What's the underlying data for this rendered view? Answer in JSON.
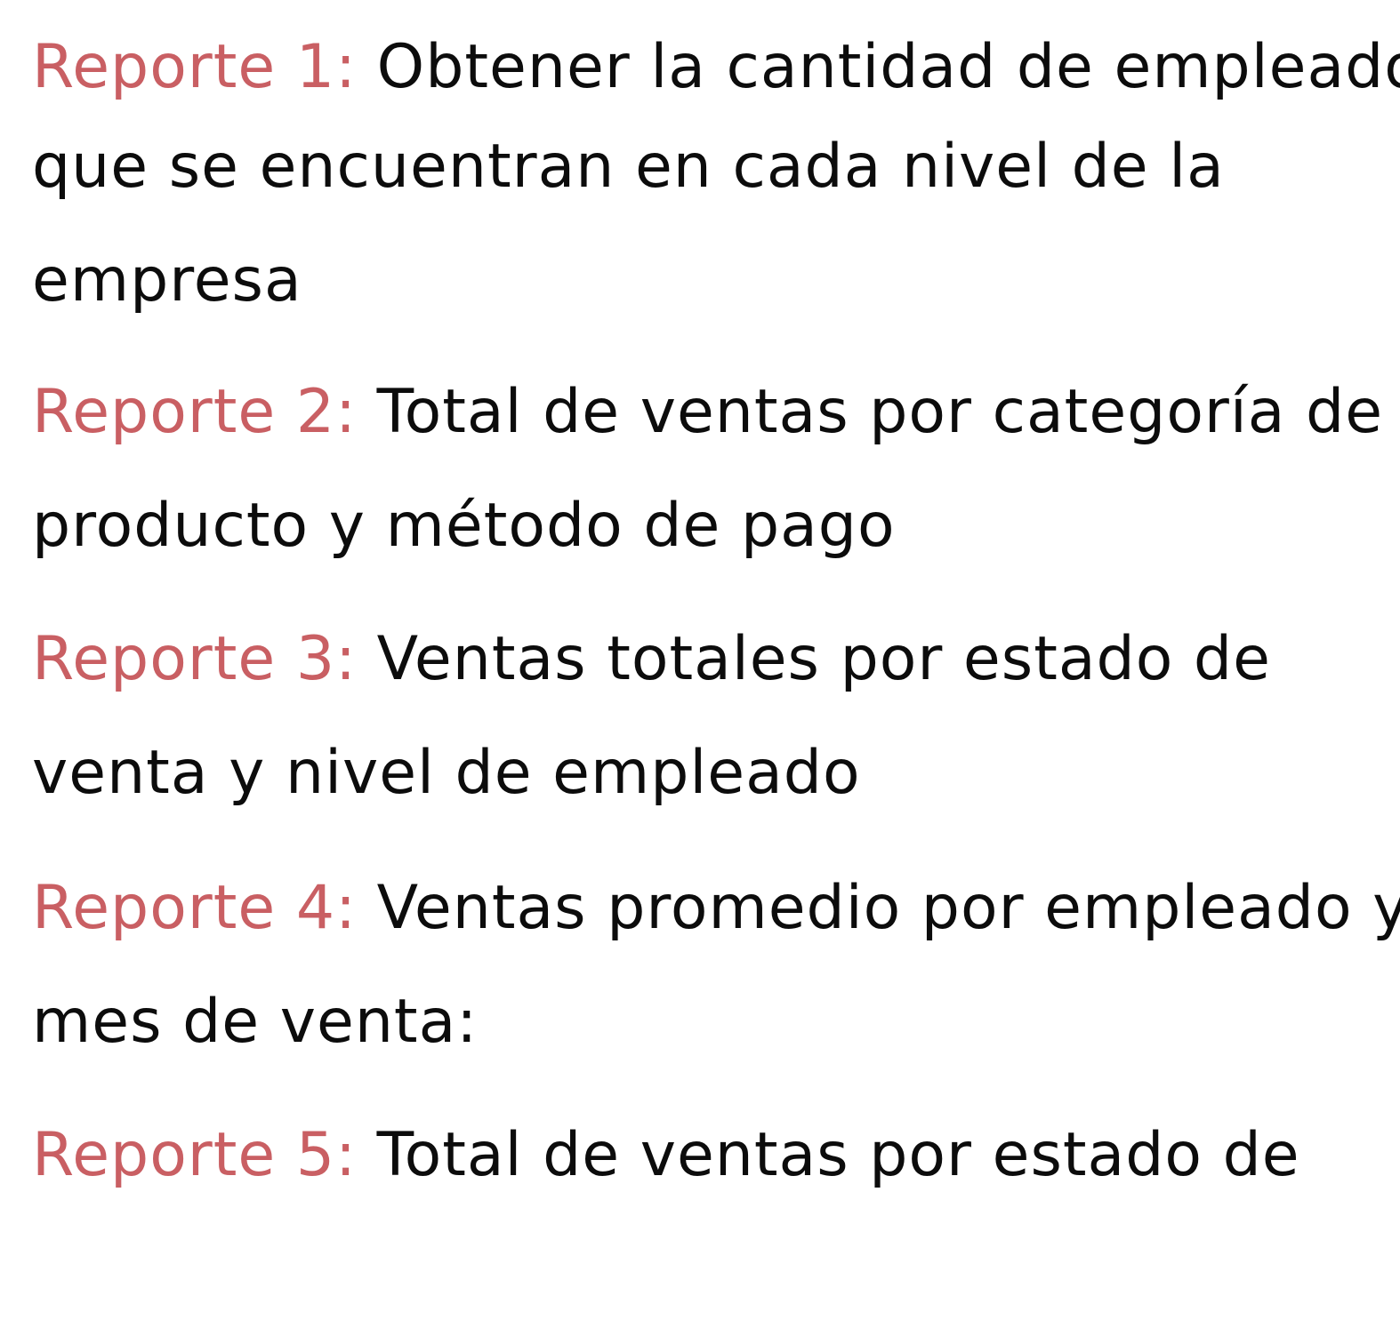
{
  "reports": [
    {
      "label": "Reporte 1:",
      "lines": [
        "Obtener la cantidad de empleados",
        "que se encuentran en cada nivel de la",
        "empresa"
      ]
    },
    {
      "label": "Reporte 2:",
      "lines": [
        "Total de ventas por categoría de",
        "producto y método de pago"
      ]
    },
    {
      "label": "Reporte 3:",
      "lines": [
        "Ventas totales por estado de",
        "venta y nivel de empleado"
      ]
    },
    {
      "label": "Reporte 4:",
      "lines": [
        "Ventas promedio por empleado y",
        "mes de venta:"
      ]
    },
    {
      "label": "Reporte 5:",
      "lines": [
        "Total de ventas por estado de"
      ]
    }
  ],
  "colors": {
    "label": "#c95f63",
    "text": "#0c0c0c",
    "background": "#ffffff"
  }
}
